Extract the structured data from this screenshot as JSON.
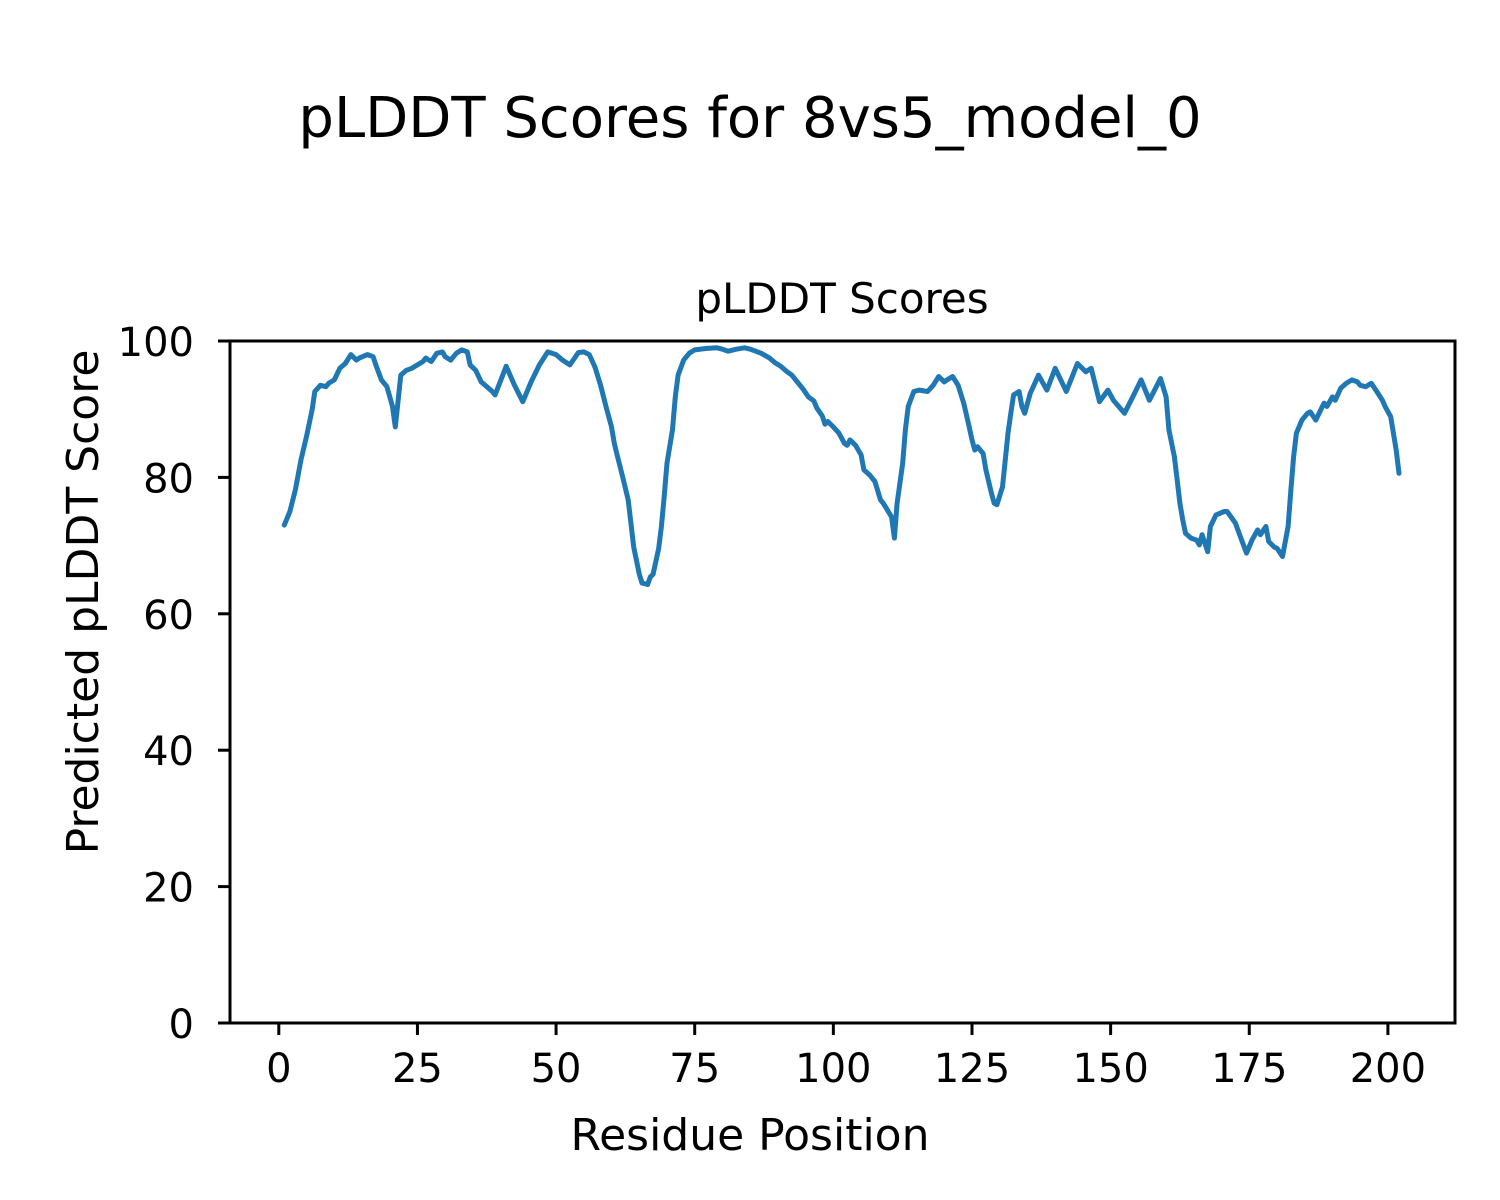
{
  "chart_data": {
    "type": "line",
    "suptitle": "pLDDT Scores for 8vs5_model_0",
    "title": "pLDDT Scores",
    "xlabel": "Residue Position",
    "ylabel": "Predicted pLDDT Score",
    "xlim": [
      -8.8,
      212.1
    ],
    "ylim": [
      0,
      100
    ],
    "x_ticks": [
      0,
      25,
      50,
      75,
      100,
      125,
      150,
      175,
      200
    ],
    "y_ticks": [
      0,
      20,
      40,
      60,
      80,
      100
    ],
    "grid": false,
    "legend_position": "none",
    "line_color": "#1f77b4",
    "line_width": 5,
    "axis_color": "#000000",
    "background_color": "#ffffff",
    "series": [
      {
        "name": "pLDDT",
        "points": [
          [
            1,
            73
          ],
          [
            2,
            75
          ],
          [
            3,
            78.2
          ],
          [
            4,
            82.6
          ],
          [
            5,
            86
          ],
          [
            6,
            89.9
          ],
          [
            6.5,
            92.6
          ],
          [
            7.5,
            93.5
          ],
          [
            8.5,
            93.3
          ],
          [
            9,
            93.8
          ],
          [
            10,
            94.3
          ],
          [
            11,
            96
          ],
          [
            12,
            96.7
          ],
          [
            13,
            98
          ],
          [
            14,
            97.2
          ],
          [
            14.5,
            97.5
          ],
          [
            16,
            98
          ],
          [
            17,
            97.7
          ],
          [
            17.5,
            96.5
          ],
          [
            18.5,
            94.3
          ],
          [
            19.5,
            93.3
          ],
          [
            20.5,
            90.4
          ],
          [
            21,
            87.4
          ],
          [
            21.5,
            91.1
          ],
          [
            22,
            95
          ],
          [
            23,
            95.7
          ],
          [
            24,
            96
          ],
          [
            25,
            96.5
          ],
          [
            26,
            97
          ],
          [
            26.5,
            97.5
          ],
          [
            27.5,
            97
          ],
          [
            28.5,
            98.2
          ],
          [
            29.5,
            98.4
          ],
          [
            30,
            97.7
          ],
          [
            31,
            97.2
          ],
          [
            32,
            98.2
          ],
          [
            33,
            98.7
          ],
          [
            34,
            98.4
          ],
          [
            34.5,
            96.5
          ],
          [
            35.5,
            95.7
          ],
          [
            36.5,
            94
          ],
          [
            37.5,
            93.3
          ],
          [
            38.5,
            92.6
          ],
          [
            39,
            92.1
          ],
          [
            41,
            96.3
          ],
          [
            42.5,
            93.5
          ],
          [
            44,
            91.1
          ],
          [
            45.5,
            94
          ],
          [
            47,
            96.5
          ],
          [
            48.5,
            98.4
          ],
          [
            50,
            98
          ],
          [
            51,
            97.3
          ],
          [
            52.5,
            96.5
          ],
          [
            54,
            98.3
          ],
          [
            55,
            98.4
          ],
          [
            56,
            98
          ],
          [
            57,
            96.2
          ],
          [
            58,
            93.6
          ],
          [
            59,
            90.4
          ],
          [
            60,
            87.4
          ],
          [
            60.5,
            85
          ],
          [
            61,
            83.3
          ],
          [
            62,
            80.1
          ],
          [
            63,
            76.7
          ],
          [
            63.5,
            73.3
          ],
          [
            64,
            69.8
          ],
          [
            65,
            65.8
          ],
          [
            65.5,
            64.5
          ],
          [
            66.5,
            64.3
          ],
          [
            67,
            65.4
          ],
          [
            67.5,
            65.8
          ],
          [
            68.5,
            69.6
          ],
          [
            69,
            72.8
          ],
          [
            69.5,
            77.2
          ],
          [
            70,
            82.1
          ],
          [
            71,
            87
          ],
          [
            71.5,
            91.8
          ],
          [
            72,
            95
          ],
          [
            73,
            97.2
          ],
          [
            74,
            98.2
          ],
          [
            75,
            98.7
          ],
          [
            77,
            98.9
          ],
          [
            79,
            99
          ],
          [
            80,
            98.8
          ],
          [
            81,
            98.5
          ],
          [
            82.5,
            98.8
          ],
          [
            84,
            99
          ],
          [
            85,
            98.8
          ],
          [
            86,
            98.5
          ],
          [
            87,
            98.2
          ],
          [
            88.5,
            97.5
          ],
          [
            89.5,
            96.8
          ],
          [
            90.5,
            96.3
          ],
          [
            91.5,
            95.6
          ],
          [
            92.5,
            95
          ],
          [
            93.5,
            94
          ],
          [
            94.5,
            93
          ],
          [
            95.5,
            91.8
          ],
          [
            96.5,
            91.2
          ],
          [
            97,
            90.2
          ],
          [
            98,
            89
          ],
          [
            98.5,
            87.8
          ],
          [
            99,
            88.2
          ],
          [
            100,
            87.4
          ],
          [
            101,
            86.5
          ],
          [
            102,
            85
          ],
          [
            102.5,
            84.7
          ],
          [
            103,
            85.5
          ],
          [
            104,
            84.7
          ],
          [
            105,
            83.3
          ],
          [
            105.5,
            81.1
          ],
          [
            106.5,
            80.4
          ],
          [
            107.5,
            79.4
          ],
          [
            108.5,
            76.7
          ],
          [
            109,
            76.2
          ],
          [
            110.5,
            74.2
          ],
          [
            111,
            71.1
          ],
          [
            111.5,
            76.2
          ],
          [
            112.5,
            82.1
          ],
          [
            113,
            87
          ],
          [
            113.5,
            90.4
          ],
          [
            114.5,
            92.6
          ],
          [
            115.5,
            92.8
          ],
          [
            117,
            92.6
          ],
          [
            118,
            93.5
          ],
          [
            119,
            94.8
          ],
          [
            120,
            94
          ],
          [
            120.5,
            94.3
          ],
          [
            121.5,
            94.8
          ],
          [
            122.5,
            93.5
          ],
          [
            123.5,
            90.9
          ],
          [
            124.5,
            87.4
          ],
          [
            125,
            85.5
          ],
          [
            125.5,
            84
          ],
          [
            126,
            84.5
          ],
          [
            127,
            83.5
          ],
          [
            127.5,
            81.1
          ],
          [
            128.5,
            77.7
          ],
          [
            129,
            76.2
          ],
          [
            129.5,
            76
          ],
          [
            130.5,
            78.6
          ],
          [
            131,
            82.6
          ],
          [
            131.5,
            86.5
          ],
          [
            132,
            89.4
          ],
          [
            132.5,
            92.1
          ],
          [
            133.5,
            92.6
          ],
          [
            134,
            90.4
          ],
          [
            134.5,
            89.4
          ],
          [
            135.5,
            92.3
          ],
          [
            137,
            95
          ],
          [
            138.5,
            92.8
          ],
          [
            140,
            96
          ],
          [
            142,
            92.6
          ],
          [
            144,
            96.7
          ],
          [
            145.5,
            95.5
          ],
          [
            146.5,
            96
          ],
          [
            148,
            91.1
          ],
          [
            149.5,
            92.8
          ],
          [
            150.5,
            91.3
          ],
          [
            152.5,
            89.4
          ],
          [
            154,
            91.8
          ],
          [
            155.5,
            94.3
          ],
          [
            157,
            91.3
          ],
          [
            159,
            94.5
          ],
          [
            160,
            91.8
          ],
          [
            160.5,
            87
          ],
          [
            161.5,
            83
          ],
          [
            162,
            79.6
          ],
          [
            162.5,
            76.2
          ],
          [
            163,
            73.8
          ],
          [
            163.5,
            71.8
          ],
          [
            164.5,
            71.1
          ],
          [
            165.5,
            70.8
          ],
          [
            166,
            70.1
          ],
          [
            166.5,
            71.6
          ],
          [
            167.5,
            69.1
          ],
          [
            168,
            72.8
          ],
          [
            169,
            74.5
          ],
          [
            170.5,
            75
          ],
          [
            171,
            75
          ],
          [
            172.5,
            73.3
          ],
          [
            173.5,
            71.1
          ],
          [
            174.5,
            68.9
          ],
          [
            175.5,
            70.8
          ],
          [
            176.5,
            72.3
          ],
          [
            177,
            71.6
          ],
          [
            178,
            72.8
          ],
          [
            178.5,
            70.6
          ],
          [
            179.5,
            69.8
          ],
          [
            180,
            69.6
          ],
          [
            181,
            68.4
          ],
          [
            182,
            72.8
          ],
          [
            182.5,
            78.2
          ],
          [
            183,
            83
          ],
          [
            183.5,
            86.5
          ],
          [
            184.5,
            88.4
          ],
          [
            185.5,
            89.4
          ],
          [
            186,
            89.6
          ],
          [
            187,
            88.4
          ],
          [
            188,
            90.1
          ],
          [
            188.5,
            90.9
          ],
          [
            189,
            90.4
          ],
          [
            190,
            91.8
          ],
          [
            190.5,
            91.3
          ],
          [
            191.5,
            93.1
          ],
          [
            192.5,
            93.8
          ],
          [
            193.5,
            94.3
          ],
          [
            194.5,
            94
          ],
          [
            195,
            93.5
          ],
          [
            196,
            93.3
          ],
          [
            197,
            93.8
          ],
          [
            198,
            92.6
          ],
          [
            199,
            91.3
          ],
          [
            199.5,
            90.4
          ],
          [
            200.5,
            88.9
          ],
          [
            201,
            86.5
          ],
          [
            201.5,
            84
          ],
          [
            202,
            80.6
          ]
        ]
      }
    ]
  }
}
